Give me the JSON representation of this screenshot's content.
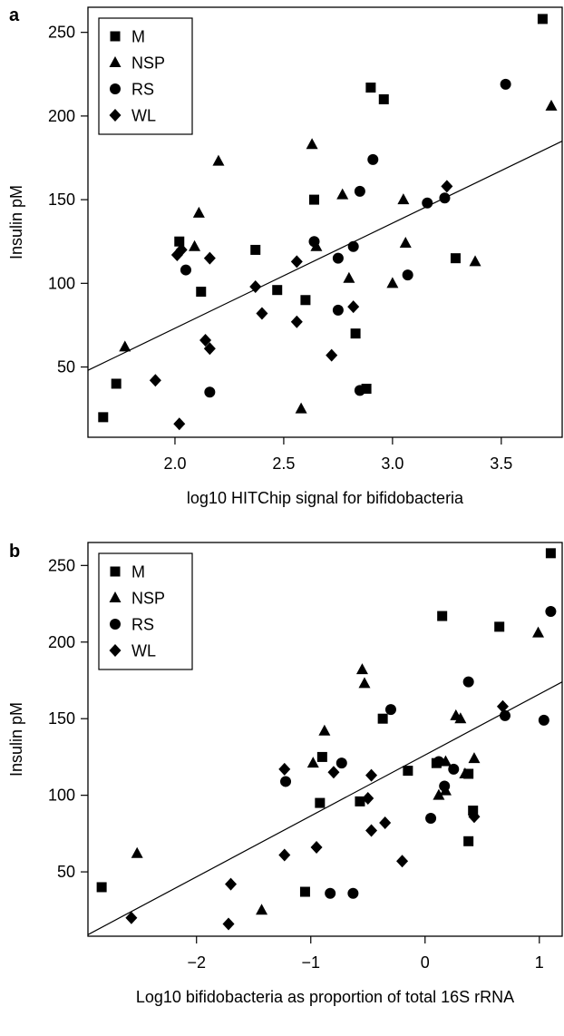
{
  "chart_data": [
    {
      "type": "scatter",
      "panel_label": "a",
      "xlabel": "log10 HITChip signal for bifidobacteria",
      "ylabel": "Insulin pM",
      "xlim": [
        1.6,
        3.78
      ],
      "ylim": [
        8,
        265
      ],
      "xticks": [
        2.0,
        2.5,
        3.0,
        3.5
      ],
      "xtick_labels": [
        "2.0",
        "2.5",
        "3.0",
        "3.5"
      ],
      "yticks": [
        50,
        100,
        150,
        200,
        250
      ],
      "ytick_labels": [
        "50",
        "100",
        "150",
        "200",
        "250"
      ],
      "legend_position": "top-left",
      "grid": false,
      "regression_line": {
        "x": [
          1.6,
          3.78
        ],
        "y": [
          48,
          185
        ]
      },
      "series": [
        {
          "name": "M",
          "marker": "square",
          "points": [
            [
              1.67,
              20
            ],
            [
              1.73,
              40
            ],
            [
              2.02,
              125
            ],
            [
              2.12,
              95
            ],
            [
              2.37,
              120
            ],
            [
              2.47,
              96
            ],
            [
              2.6,
              90
            ],
            [
              2.64,
              150
            ],
            [
              2.83,
              70
            ],
            [
              2.88,
              37
            ],
            [
              2.9,
              217
            ],
            [
              2.96,
              210
            ],
            [
              3.29,
              115
            ],
            [
              3.69,
              258
            ]
          ]
        },
        {
          "name": "NSP",
          "marker": "triangle",
          "points": [
            [
              1.77,
              62
            ],
            [
              2.09,
              122
            ],
            [
              2.11,
              142
            ],
            [
              2.2,
              173
            ],
            [
              2.58,
              25
            ],
            [
              2.63,
              183
            ],
            [
              2.65,
              122
            ],
            [
              2.77,
              153
            ],
            [
              2.8,
              103
            ],
            [
              3.0,
              100
            ],
            [
              3.06,
              124
            ],
            [
              3.05,
              150
            ],
            [
              3.38,
              113
            ],
            [
              3.73,
              206
            ]
          ]
        },
        {
          "name": "RS",
          "marker": "circle",
          "points": [
            [
              2.05,
              108
            ],
            [
              2.16,
              35
            ],
            [
              2.64,
              125
            ],
            [
              2.75,
              84
            ],
            [
              2.75,
              115
            ],
            [
              2.82,
              122
            ],
            [
              2.85,
              155
            ],
            [
              2.85,
              36
            ],
            [
              2.91,
              174
            ],
            [
              3.07,
              105
            ],
            [
              3.16,
              148
            ],
            [
              3.24,
              151
            ],
            [
              3.52,
              219
            ]
          ]
        },
        {
          "name": "WL",
          "marker": "diamond",
          "points": [
            [
              1.91,
              42
            ],
            [
              2.01,
              117
            ],
            [
              2.03,
              120
            ],
            [
              2.02,
              16
            ],
            [
              2.14,
              66
            ],
            [
              2.16,
              61
            ],
            [
              2.16,
              115
            ],
            [
              2.37,
              98
            ],
            [
              2.4,
              82
            ],
            [
              2.56,
              77
            ],
            [
              2.56,
              113
            ],
            [
              2.72,
              57
            ],
            [
              2.82,
              86
            ],
            [
              3.25,
              158
            ]
          ]
        }
      ]
    },
    {
      "type": "scatter",
      "panel_label": "b",
      "xlabel": "Log10 bifidobacteria as proportion of total 16S rRNA",
      "ylabel": "Insulin pM",
      "xlim": [
        -2.95,
        1.2
      ],
      "ylim": [
        8,
        265
      ],
      "xticks": [
        -2,
        -1,
        0,
        1
      ],
      "xtick_labels": [
        "−2",
        "−1",
        "0",
        "1"
      ],
      "yticks": [
        50,
        100,
        150,
        200,
        250
      ],
      "ytick_labels": [
        "50",
        "100",
        "150",
        "200",
        "250"
      ],
      "legend_position": "top-left",
      "grid": false,
      "regression_line": {
        "x": [
          -2.95,
          1.2
        ],
        "y": [
          9,
          174
        ]
      },
      "series": [
        {
          "name": "M",
          "marker": "square",
          "points": [
            [
              -2.83,
              40
            ],
            [
              -1.05,
              37
            ],
            [
              -0.92,
              95
            ],
            [
              -0.9,
              125
            ],
            [
              -0.57,
              96
            ],
            [
              -0.37,
              150
            ],
            [
              -0.15,
              116
            ],
            [
              0.1,
              121
            ],
            [
              0.15,
              217
            ],
            [
              0.38,
              114
            ],
            [
              0.38,
              70
            ],
            [
              0.42,
              90
            ],
            [
              0.65,
              210
            ],
            [
              1.1,
              258
            ]
          ]
        },
        {
          "name": "NSP",
          "marker": "triangle",
          "points": [
            [
              -2.52,
              62
            ],
            [
              -1.43,
              25
            ],
            [
              -0.98,
              121
            ],
            [
              -0.88,
              142
            ],
            [
              -0.55,
              182
            ],
            [
              -0.53,
              173
            ],
            [
              0.12,
              100
            ],
            [
              0.18,
              103
            ],
            [
              0.18,
              122
            ],
            [
              0.27,
              152
            ],
            [
              0.31,
              150
            ],
            [
              0.35,
              114
            ],
            [
              0.43,
              124
            ],
            [
              0.99,
              206
            ]
          ]
        },
        {
          "name": "RS",
          "marker": "circle",
          "points": [
            [
              -1.22,
              109
            ],
            [
              -0.83,
              36
            ],
            [
              -0.73,
              121
            ],
            [
              -0.63,
              36
            ],
            [
              -0.3,
              156
            ],
            [
              0.05,
              85
            ],
            [
              0.12,
              122
            ],
            [
              0.17,
              106
            ],
            [
              0.25,
              117
            ],
            [
              0.38,
              174
            ],
            [
              0.7,
              152
            ],
            [
              1.04,
              149
            ],
            [
              1.1,
              220
            ]
          ]
        },
        {
          "name": "WL",
          "marker": "diamond",
          "points": [
            [
              -2.57,
              20
            ],
            [
              -1.72,
              16
            ],
            [
              -1.7,
              42
            ],
            [
              -1.23,
              61
            ],
            [
              -1.23,
              117
            ],
            [
              -0.95,
              66
            ],
            [
              -0.8,
              115
            ],
            [
              -0.5,
              98
            ],
            [
              -0.47,
              77
            ],
            [
              -0.47,
              113
            ],
            [
              -0.35,
              82
            ],
            [
              -0.2,
              57
            ],
            [
              0.43,
              86
            ],
            [
              0.68,
              158
            ]
          ]
        }
      ]
    }
  ]
}
